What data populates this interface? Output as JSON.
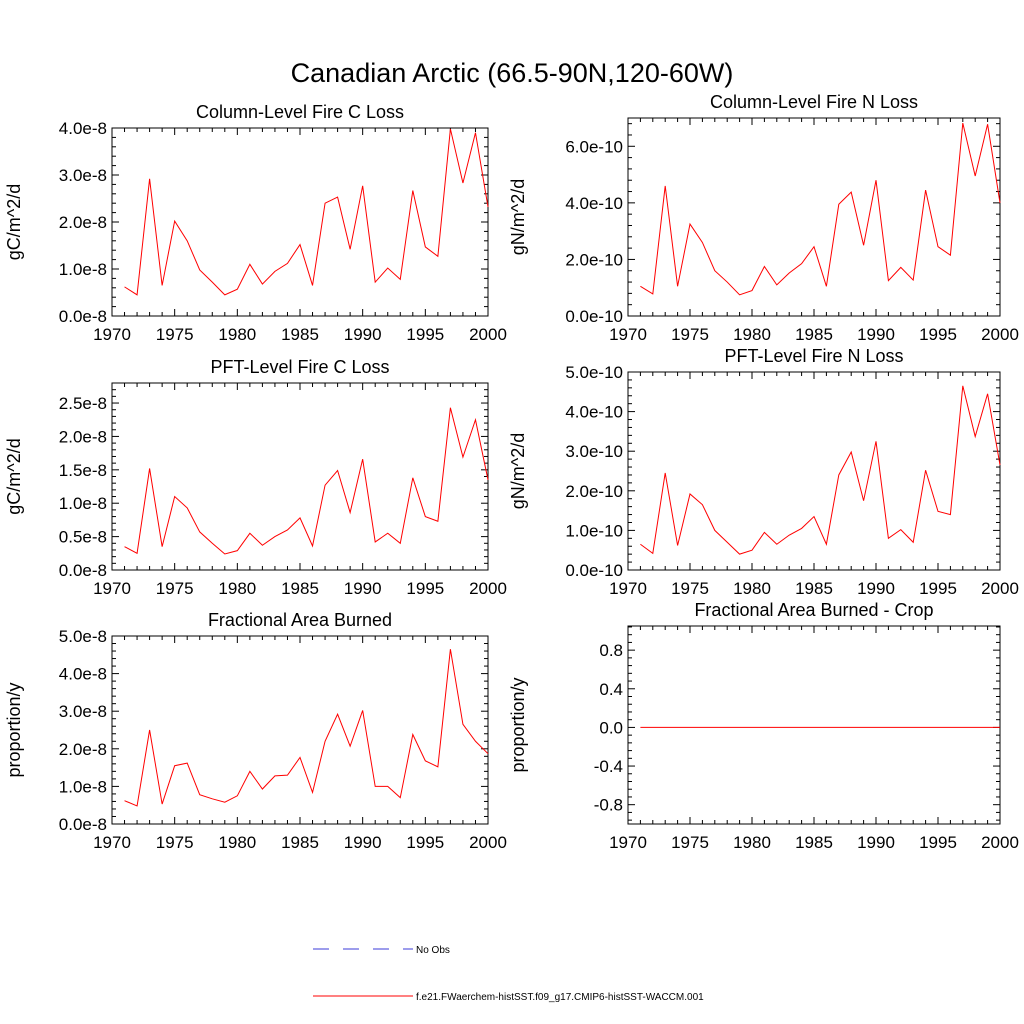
{
  "figure": {
    "title": "Canadian Arctic (66.5-90N,120-60W)"
  },
  "legend": {
    "obs_label": "No Obs",
    "model_label": "f.e21.FWaerchem-histSST.f09_g17.CMIP6-histSST-WACCM.001",
    "obs_color": "#3b3bd9",
    "model_color": "#ff0000"
  },
  "chart_data": [
    {
      "type": "line",
      "title": "Column-Level Fire C Loss",
      "ylabel": "gC/m^2/d",
      "xlim": [
        1970,
        2000
      ],
      "ylim": [
        0,
        4e-08
      ],
      "xticks": [
        1970,
        1975,
        1980,
        1985,
        1990,
        1995,
        2000
      ],
      "yticks": [
        0,
        1e-08,
        2e-08,
        3e-08,
        4e-08
      ],
      "ytick_labels": [
        "0.0e-8",
        "1.0e-8",
        "2.0e-8",
        "3.0e-8",
        "4.0e-8"
      ],
      "x": [
        1971,
        1972,
        1973,
        1974,
        1975,
        1976,
        1977,
        1978,
        1979,
        1980,
        1981,
        1982,
        1983,
        1984,
        1985,
        1986,
        1987,
        1988,
        1989,
        1990,
        1991,
        1992,
        1993,
        1994,
        1995,
        1996,
        1997,
        1998,
        1999,
        2000
      ],
      "series": [
        {
          "name": "f.e21.FWaerchem-histSST.f09_g17.CMIP6-histSST-WACCM.001",
          "color": "#ff0000",
          "values": [
            6.2e-09,
            4.5e-09,
            2.92e-08,
            6.5e-09,
            2.02e-08,
            1.6e-08,
            9.8e-09,
            7.2e-09,
            4.5e-09,
            5.7e-09,
            1.1e-08,
            6.8e-09,
            9.5e-09,
            1.12e-08,
            1.52e-08,
            6.5e-09,
            2.4e-08,
            2.53e-08,
            1.42e-08,
            2.77e-08,
            7.2e-09,
            1.02e-08,
            7.8e-09,
            2.67e-08,
            1.47e-08,
            1.27e-08,
            3.98e-08,
            2.83e-08,
            3.9e-08,
            2.32e-08
          ]
        }
      ]
    },
    {
      "type": "line",
      "title": "Column-Level Fire N Loss",
      "ylabel": "gN/m^2/d",
      "xlim": [
        1970,
        2000
      ],
      "ylim": [
        0,
        7e-10
      ],
      "xticks": [
        1970,
        1975,
        1980,
        1985,
        1990,
        1995,
        2000
      ],
      "yticks": [
        0,
        2e-10,
        4e-10,
        6e-10
      ],
      "ytick_labels": [
        "0.0e-10",
        "2.0e-10",
        "4.0e-10",
        "6.0e-10"
      ],
      "x": [
        1971,
        1972,
        1973,
        1974,
        1975,
        1976,
        1977,
        1978,
        1979,
        1980,
        1981,
        1982,
        1983,
        1984,
        1985,
        1986,
        1987,
        1988,
        1989,
        1990,
        1991,
        1992,
        1993,
        1994,
        1995,
        1996,
        1997,
        1998,
        1999,
        2000
      ],
      "series": [
        {
          "name": "f.e21.FWaerchem-histSST.f09_g17.CMIP6-histSST-WACCM.001",
          "color": "#ff0000",
          "values": [
            1.05e-10,
            7.8e-11,
            4.6e-10,
            1.05e-10,
            3.25e-10,
            2.6e-10,
            1.6e-10,
            1.2e-10,
            7.5e-11,
            9e-11,
            1.75e-10,
            1.1e-10,
            1.52e-10,
            1.85e-10,
            2.45e-10,
            1.05e-10,
            3.95e-10,
            4.38e-10,
            2.5e-10,
            4.8e-10,
            1.25e-10,
            1.72e-10,
            1.27e-10,
            4.45e-10,
            2.45e-10,
            2.15e-10,
            6.82e-10,
            4.95e-10,
            6.78e-10,
            4e-10
          ]
        }
      ]
    },
    {
      "type": "line",
      "title": "PFT-Level Fire C Loss",
      "ylabel": "gC/m^2/d",
      "xlim": [
        1970,
        2000
      ],
      "ylim": [
        0,
        2.8e-08
      ],
      "xticks": [
        1970,
        1975,
        1980,
        1985,
        1990,
        1995,
        2000
      ],
      "yticks": [
        0,
        5e-09,
        1e-08,
        1.5e-08,
        2e-08,
        2.5e-08
      ],
      "ytick_labels": [
        "0.0e-8",
        "0.5e-8",
        "1.0e-8",
        "1.5e-8",
        "2.0e-8",
        "2.5e-8"
      ],
      "x": [
        1971,
        1972,
        1973,
        1974,
        1975,
        1976,
        1977,
        1978,
        1979,
        1980,
        1981,
        1982,
        1983,
        1984,
        1985,
        1986,
        1987,
        1988,
        1989,
        1990,
        1991,
        1992,
        1993,
        1994,
        1995,
        1996,
        1997,
        1998,
        1999,
        2000
      ],
      "series": [
        {
          "name": "f.e21.FWaerchem-histSST.f09_g17.CMIP6-histSST-WACCM.001",
          "color": "#ff0000",
          "values": [
            3.5e-09,
            2.5e-09,
            1.52e-08,
            3.5e-09,
            1.1e-08,
            9.3e-09,
            5.7e-09,
            4e-09,
            2.4e-09,
            2.9e-09,
            5.5e-09,
            3.7e-09,
            5e-09,
            6e-09,
            7.8e-09,
            3.6e-09,
            1.27e-08,
            1.49e-08,
            8.6e-09,
            1.66e-08,
            4.2e-09,
            5.5e-09,
            4e-09,
            1.38e-08,
            8e-09,
            7.3e-09,
            2.43e-08,
            1.69e-08,
            2.25e-08,
            1.35e-08
          ]
        }
      ]
    },
    {
      "type": "line",
      "title": "PFT-Level Fire N Loss",
      "ylabel": "gN/m^2/d",
      "xlim": [
        1970,
        2000
      ],
      "ylim": [
        0,
        5e-10
      ],
      "xticks": [
        1970,
        1975,
        1980,
        1985,
        1990,
        1995,
        2000
      ],
      "yticks": [
        0,
        1e-10,
        2e-10,
        3e-10,
        4e-10,
        5e-10
      ],
      "ytick_labels": [
        "0.0e-10",
        "1.0e-10",
        "2.0e-10",
        "3.0e-10",
        "4.0e-10",
        "5.0e-10"
      ],
      "x": [
        1971,
        1972,
        1973,
        1974,
        1975,
        1976,
        1977,
        1978,
        1979,
        1980,
        1981,
        1982,
        1983,
        1984,
        1985,
        1986,
        1987,
        1988,
        1989,
        1990,
        1991,
        1992,
        1993,
        1994,
        1995,
        1996,
        1997,
        1998,
        1999,
        2000
      ],
      "series": [
        {
          "name": "f.e21.FWaerchem-histSST.f09_g17.CMIP6-histSST-WACCM.001",
          "color": "#ff0000",
          "values": [
            6.5e-11,
            4.2e-11,
            2.45e-10,
            6.2e-11,
            1.92e-10,
            1.65e-10,
            1e-10,
            7e-11,
            4e-11,
            5e-11,
            9.5e-11,
            6.5e-11,
            8.8e-11,
            1.05e-10,
            1.35e-10,
            6.5e-11,
            2.4e-10,
            2.98e-10,
            1.75e-10,
            3.25e-10,
            8e-11,
            1.02e-10,
            7e-11,
            2.52e-10,
            1.48e-10,
            1.4e-10,
            4.65e-10,
            3.37e-10,
            4.45e-10,
            2.65e-10
          ]
        }
      ]
    },
    {
      "type": "line",
      "title": "Fractional Area Burned",
      "ylabel": "proportion/y",
      "xlim": [
        1970,
        2000
      ],
      "ylim": [
        0,
        5e-08
      ],
      "xticks": [
        1970,
        1975,
        1980,
        1985,
        1990,
        1995,
        2000
      ],
      "yticks": [
        0,
        1e-08,
        2e-08,
        3e-08,
        4e-08,
        5e-08
      ],
      "ytick_labels": [
        "0.0e-8",
        "1.0e-8",
        "2.0e-8",
        "3.0e-8",
        "4.0e-8",
        "5.0e-8"
      ],
      "x": [
        1971,
        1972,
        1973,
        1974,
        1975,
        1976,
        1977,
        1978,
        1979,
        1980,
        1981,
        1982,
        1983,
        1984,
        1985,
        1986,
        1987,
        1988,
        1989,
        1990,
        1991,
        1992,
        1993,
        1994,
        1995,
        1996,
        1997,
        1998,
        1999,
        2000
      ],
      "series": [
        {
          "name": "f.e21.FWaerchem-histSST.f09_g17.CMIP6-histSST-WACCM.001",
          "color": "#ff0000",
          "values": [
            6.2e-09,
            4.8e-09,
            2.5e-08,
            5.3e-09,
            1.55e-08,
            1.62e-08,
            7.8e-09,
            6.7e-09,
            5.8e-09,
            7.5e-09,
            1.4e-08,
            9.3e-09,
            1.28e-08,
            1.3e-08,
            1.77e-08,
            8.4e-09,
            2.2e-08,
            2.92e-08,
            2.07e-08,
            3.02e-08,
            1e-08,
            1e-08,
            7e-09,
            2.38e-08,
            1.68e-08,
            1.52e-08,
            4.65e-08,
            2.65e-08,
            2.2e-08,
            1.87e-08
          ]
        }
      ]
    },
    {
      "type": "line",
      "title": "Fractional Area Burned - Crop",
      "ylabel": "proportion/y",
      "xlim": [
        1970,
        2000
      ],
      "ylim": [
        -1.0,
        1.05
      ],
      "xticks": [
        1970,
        1975,
        1980,
        1985,
        1990,
        1995,
        2000
      ],
      "yticks": [
        -0.8,
        -0.4,
        0.0,
        0.4,
        0.8
      ],
      "ytick_labels": [
        "-0.8",
        "-0.4",
        "0.0",
        "0.4",
        "0.8"
      ],
      "x": [
        1971,
        1972,
        1973,
        1974,
        1975,
        1976,
        1977,
        1978,
        1979,
        1980,
        1981,
        1982,
        1983,
        1984,
        1985,
        1986,
        1987,
        1988,
        1989,
        1990,
        1991,
        1992,
        1993,
        1994,
        1995,
        1996,
        1997,
        1998,
        1999,
        2000
      ],
      "series": [
        {
          "name": "f.e21.FWaerchem-histSST.f09_g17.CMIP6-histSST-WACCM.001",
          "color": "#ff0000",
          "values": [
            0,
            0,
            0,
            0,
            0,
            0,
            0,
            0,
            0,
            0,
            0,
            0,
            0,
            0,
            0,
            0,
            0,
            0,
            0,
            0,
            0,
            0,
            0,
            0,
            0,
            0,
            0,
            0,
            0,
            0
          ]
        }
      ]
    }
  ]
}
